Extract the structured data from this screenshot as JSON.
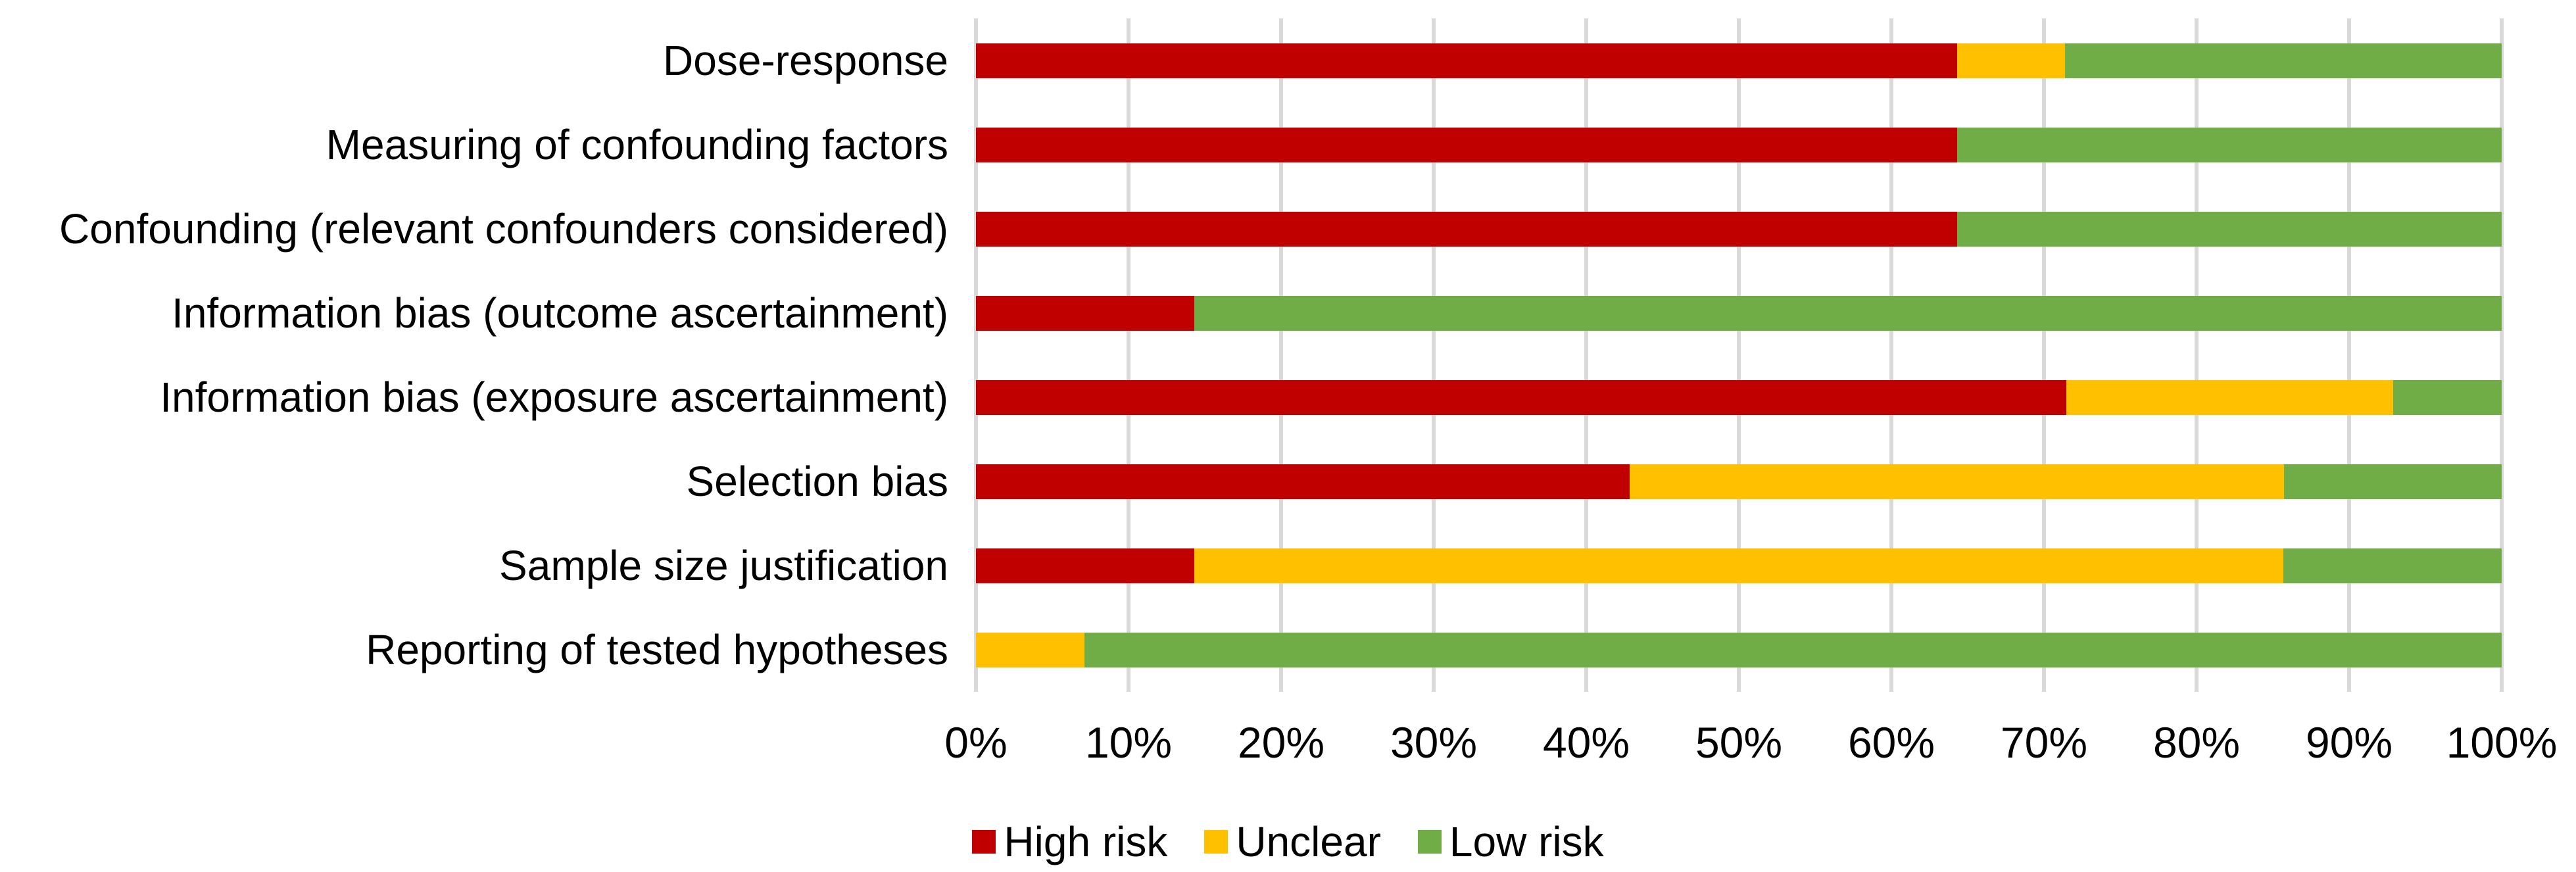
{
  "chart_data": {
    "type": "bar",
    "stacked": true,
    "orientation": "horizontal",
    "title": "",
    "xlabel": "",
    "ylabel": "",
    "categories": [
      "Dose-response",
      "Measuring of confounding factors",
      "Confounding (relevant confounders considered)",
      "Information bias (outcome ascertainment)",
      "Information bias (exposure ascertainment)",
      "Selection bias",
      "Sample size justification",
      "Reporting of tested hypotheses"
    ],
    "series": [
      {
        "name": "High risk",
        "color": "#C00000",
        "values": [
          64.3,
          64.3,
          64.3,
          14.3,
          71.4,
          42.9,
          14.3,
          0
        ]
      },
      {
        "name": "Unclear",
        "color": "#FFC000",
        "values": [
          7.1,
          0,
          0,
          0,
          21.4,
          42.9,
          71.4,
          7.1
        ]
      },
      {
        "name": "Low risk",
        "color": "#70AD47",
        "values": [
          28.6,
          35.7,
          35.7,
          85.7,
          7.1,
          14.3,
          14.3,
          92.9
        ]
      }
    ],
    "x_axis": {
      "min": 0,
      "max": 100,
      "tick_step": 10,
      "tick_labels": [
        "0%",
        "10%",
        "20%",
        "30%",
        "40%",
        "50%",
        "60%",
        "70%",
        "80%",
        "90%",
        "100%"
      ]
    },
    "grid": "vertical",
    "gridline_color": "#D9D9D9",
    "legend_position": "bottom",
    "background_color": "#FFFFFF",
    "text_color": "#000000"
  }
}
